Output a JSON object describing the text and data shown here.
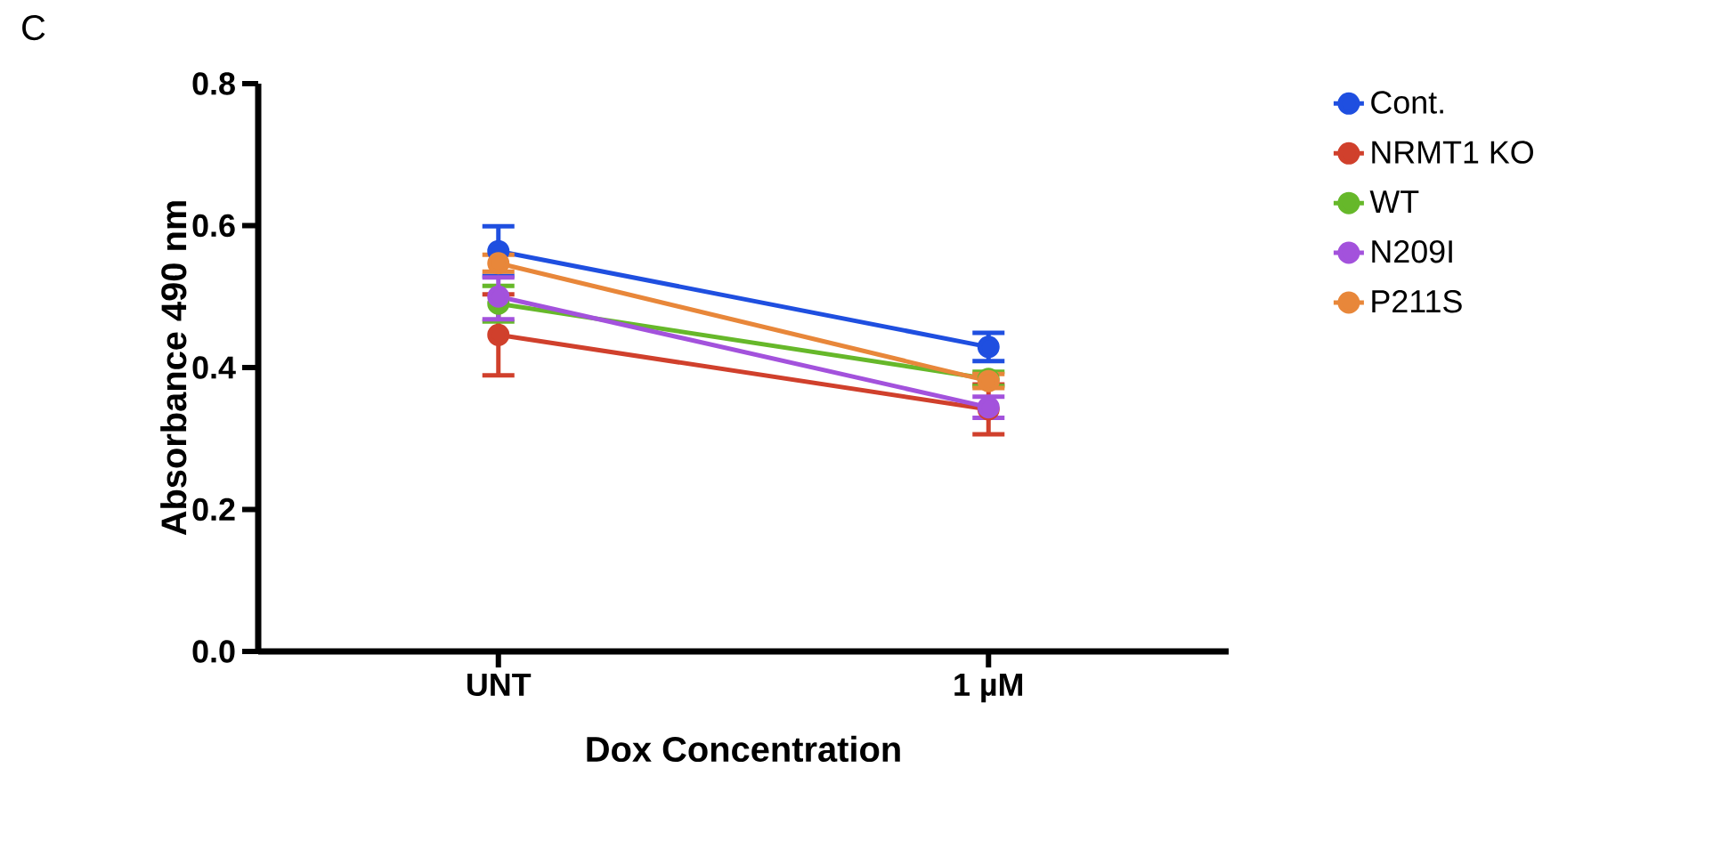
{
  "chart_data": {
    "type": "line",
    "xlabel": "Dox Concentration",
    "ylabel": "Absorbance 490 nm",
    "annotations": [
      "C"
    ],
    "categories": [
      "UNT",
      "1 µM"
    ],
    "ylim": [
      0,
      0.8
    ],
    "yticks": [
      {
        "value": 0,
        "label": "0.0"
      },
      0.2,
      0.4,
      0.6,
      0.8
    ],
    "grid": false,
    "legend": "right",
    "marker": "circle",
    "line_style": "solid",
    "series": [
      {
        "name": "Cont.",
        "color": "#1f4fe0",
        "values": [
          0.564,
          0.429
        ],
        "errors": [
          0.035,
          0.02
        ]
      },
      {
        "name": "NRMT1 KO",
        "color": "#d0402c",
        "values": [
          0.446,
          0.341
        ],
        "errors": [
          0.057,
          0.035
        ]
      },
      {
        "name": "WT",
        "color": "#66b82a",
        "values": [
          0.49,
          0.384
        ],
        "errors": [
          0.025,
          0.01
        ]
      },
      {
        "name": "N209I",
        "color": "#a352dc",
        "values": [
          0.5,
          0.344
        ],
        "errors": [
          [
            0.468,
            0.527
          ],
          0.015
        ]
      },
      {
        "name": "P211S",
        "color": "#e8873a",
        "values": [
          0.547,
          0.381
        ],
        "errors": [
          0.012,
          0.01
        ]
      }
    ]
  }
}
